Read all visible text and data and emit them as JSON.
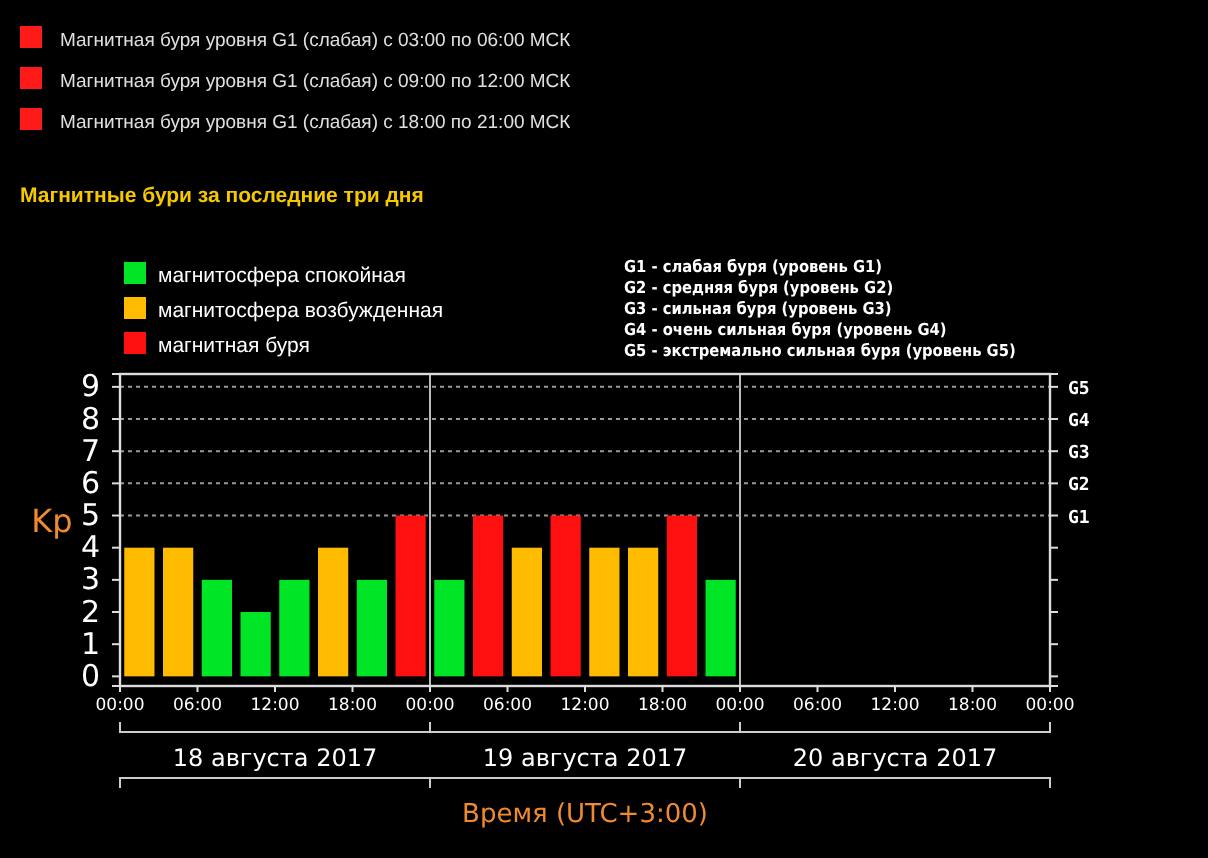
{
  "chart_data": {
    "type": "bar",
    "title": "Магнитные бури за последние три дня",
    "xlabel": "Время (UTC+3:00)",
    "ylabel": "Kp",
    "x": [
      "2017-08-18T01:30",
      "2017-08-18T04:30",
      "2017-08-18T07:30",
      "2017-08-18T10:30",
      "2017-08-18T13:30",
      "2017-08-18T16:30",
      "2017-08-18T19:30",
      "2017-08-18T22:30",
      "2017-08-19T01:30",
      "2017-08-19T04:30",
      "2017-08-19T07:30",
      "2017-08-19T10:30",
      "2017-08-19T13:30",
      "2017-08-19T16:30",
      "2017-08-19T19:30",
      "2017-08-19T22:30"
    ],
    "series": [
      {
        "name": "магнитосфера спокойная",
        "color": "#00e626",
        "values": [
          null,
          null,
          3,
          2,
          3,
          null,
          3,
          null,
          3,
          null,
          null,
          null,
          null,
          null,
          null,
          3
        ]
      },
      {
        "name": "магнитосфера возбужденная",
        "color": "#ffbb00",
        "values": [
          4,
          4,
          null,
          null,
          null,
          4,
          null,
          null,
          null,
          null,
          4,
          null,
          4,
          4,
          null,
          null
        ]
      },
      {
        "name": "магнитная буря",
        "color": "#ff1010",
        "values": [
          null,
          null,
          null,
          null,
          null,
          null,
          null,
          5,
          null,
          5,
          null,
          5,
          null,
          null,
          5,
          null
        ]
      }
    ],
    "xlim": [
      "2017-08-18T00:00",
      "2017-08-21T00:00"
    ],
    "xticks": [
      {
        "value": "2017-08-18T00:00",
        "label": "00:00"
      },
      {
        "value": "2017-08-18T06:00",
        "label": "06:00"
      },
      {
        "value": "2017-08-18T12:00",
        "label": "12:00"
      },
      {
        "value": "2017-08-18T18:00",
        "label": "18:00"
      },
      {
        "value": "2017-08-19T00:00",
        "label": "00:00"
      },
      {
        "value": "2017-08-19T06:00",
        "label": "06:00"
      },
      {
        "value": "2017-08-19T12:00",
        "label": "12:00"
      },
      {
        "value": "2017-08-19T18:00",
        "label": "18:00"
      },
      {
        "value": "2017-08-20T00:00",
        "label": "00:00"
      },
      {
        "value": "2017-08-20T06:00",
        "label": "06:00"
      },
      {
        "value": "2017-08-20T12:00",
        "label": "12:00"
      },
      {
        "value": "2017-08-20T18:00",
        "label": "18:00"
      },
      {
        "value": "2017-08-21T00:00",
        "label": "00:00"
      }
    ],
    "ylim": [
      -0.3,
      9.4
    ],
    "yticks": [
      0,
      1,
      2,
      3,
      4,
      5,
      6,
      7,
      8,
      9
    ],
    "ref_lines": [
      {
        "axis": "x",
        "value": "2017-08-19T00:00",
        "label": null,
        "color": "#bbbbbb",
        "line_style": "solid"
      },
      {
        "axis": "x",
        "value": "2017-08-20T00:00",
        "label": null,
        "color": "#bbbbbb",
        "line_style": "solid"
      },
      {
        "axis": "y",
        "value": 5,
        "label": "G1",
        "color": "#999999",
        "line_style": "dotted"
      },
      {
        "axis": "y",
        "value": 6,
        "label": "G2",
        "color": "#999999",
        "line_style": "dotted"
      },
      {
        "axis": "y",
        "value": 7,
        "label": "G3",
        "color": "#999999",
        "line_style": "dotted"
      },
      {
        "axis": "y",
        "value": 8,
        "label": "G4",
        "color": "#999999",
        "line_style": "dotted"
      },
      {
        "axis": "y",
        "value": 9,
        "label": "G5",
        "color": "#999999",
        "line_style": "dotted"
      }
    ],
    "legend": "top left",
    "annotations": [
      "Магнитная буря уровня  G1 (слабая) с 03:00 по 06:00 МСК",
      "Магнитная буря уровня  G1 (слабая) с 09:00 по 12:00 МСК",
      "Магнитная буря уровня  G1 (слабая) с 18:00 по 21:00 МСК",
      "G1 - слабая буря (уровень G1)",
      "G2 - средняя буря (уровень G2)",
      "G3 - сильная буря (уровень G3)",
      "G4 - очень сильная буря (уровень G4)",
      "G5 - экстремально сильная буря (уровень G5)",
      "18 августа 2017",
      "19 августа 2017",
      "20 августа 2017"
    ]
  }
}
